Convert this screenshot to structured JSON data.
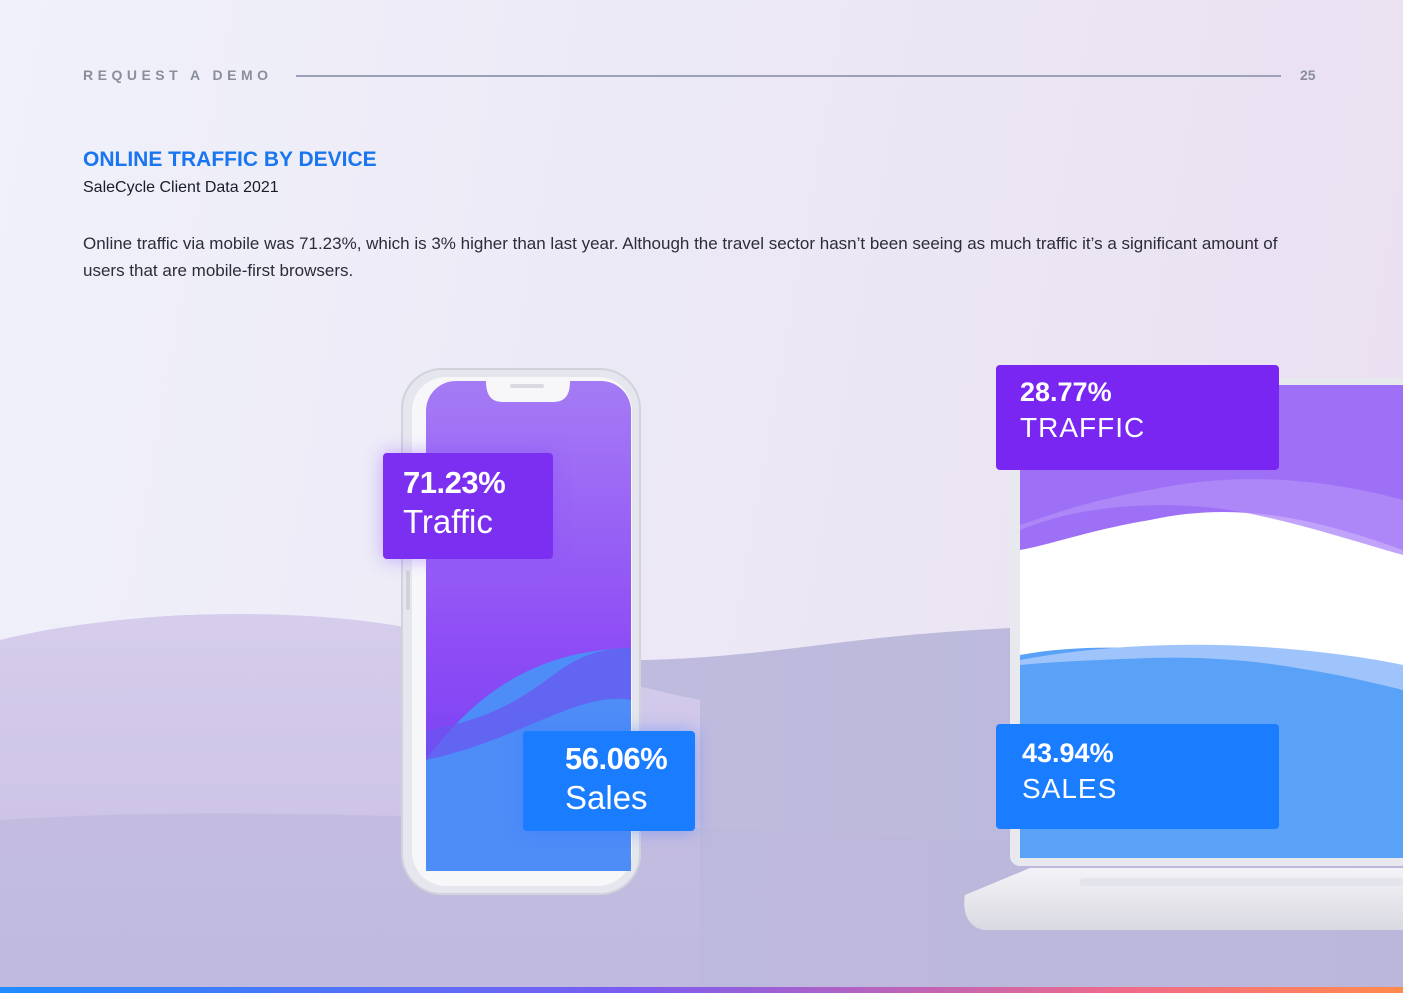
{
  "header": {
    "label": "REQUEST A DEMO",
    "page_number": "25"
  },
  "section": {
    "title": "ONLINE TRAFFIC BY DEVICE",
    "subtitle": "SaleCycle Client Data 2021",
    "body": "Online traffic via mobile was 71.23%, which is 3% higher than last year. Although the travel sector hasn’t been seeing as much traffic it’s a significant amount of users that are mobile-first browsers."
  },
  "mobile": {
    "traffic": {
      "value": "71.23%",
      "label": "Traffic"
    },
    "sales": {
      "value": "56.06%",
      "label": "Sales"
    }
  },
  "desktop": {
    "traffic": {
      "value": "28.77%",
      "label": "TRAFFIC"
    },
    "sales": {
      "value": "43.94%",
      "label": "SALES"
    }
  },
  "colors": {
    "title": "#1a76f0",
    "traffic_purple": "#7b2ff0",
    "sales_blue": "#1a7cff"
  }
}
